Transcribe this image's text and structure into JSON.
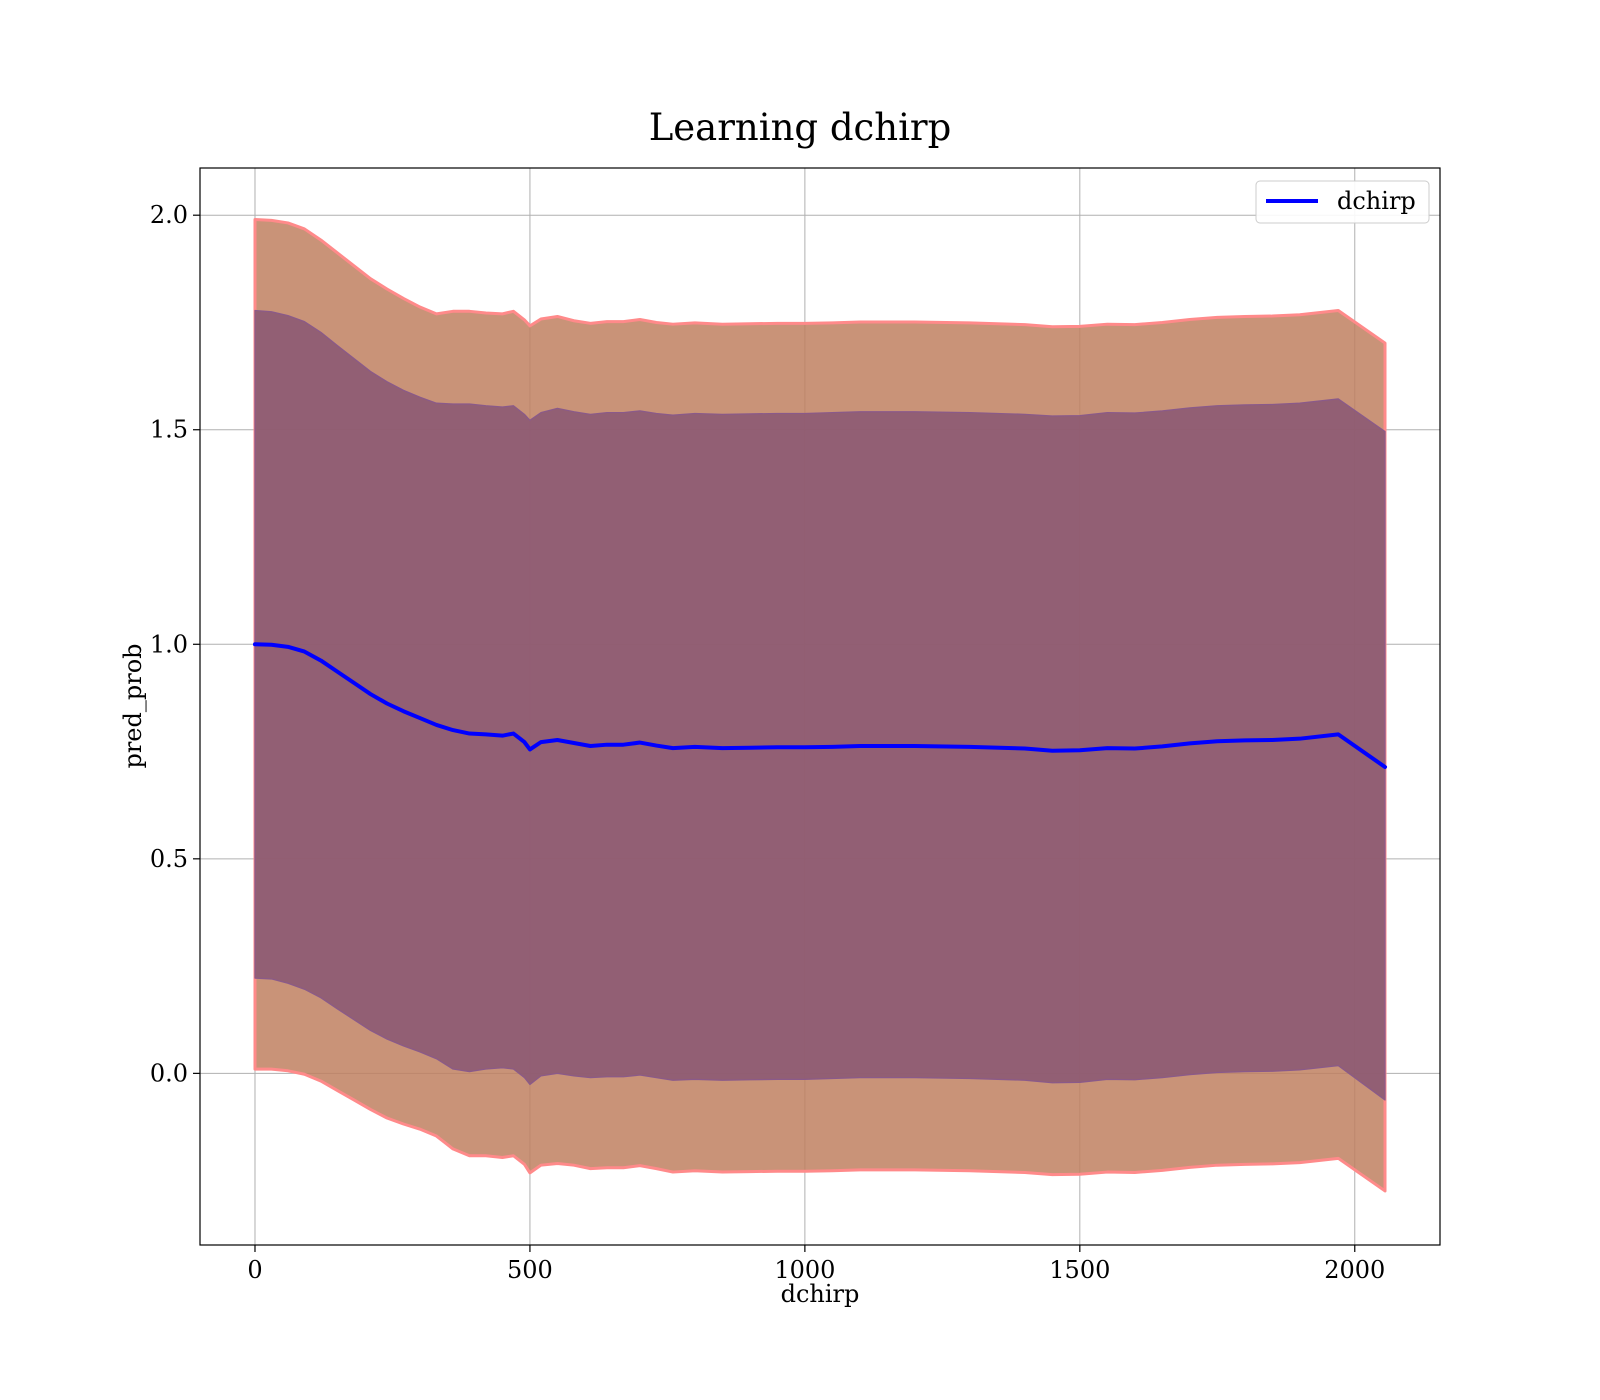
{
  "chart_data": {
    "type": "line",
    "title": "Learning dchirp",
    "xlabel": "dchirp",
    "ylabel": "pred_prob",
    "xlim": [
      -100,
      2155
    ],
    "ylim": [
      -0.4,
      2.11
    ],
    "xticks": [
      0,
      500,
      1000,
      1500,
      2000
    ],
    "xtick_labels": [
      "0",
      "500",
      "1000",
      "1500",
      "2000"
    ],
    "yticks": [
      0.0,
      0.5,
      1.0,
      1.5,
      2.0
    ],
    "ytick_labels": [
      "0.0",
      "0.5",
      "1.0",
      "1.5",
      "2.0"
    ],
    "grid": true,
    "legend_position": "upper-right",
    "series": [
      {
        "name": "dchirp",
        "color": "#0000ff",
        "x": [
          0,
          30,
          60,
          90,
          120,
          150,
          180,
          210,
          240,
          270,
          300,
          330,
          360,
          390,
          420,
          450,
          470,
          490,
          500,
          520,
          550,
          580,
          610,
          640,
          670,
          700,
          730,
          760,
          800,
          850,
          900,
          950,
          1000,
          1050,
          1100,
          1200,
          1300,
          1400,
          1450,
          1500,
          1550,
          1600,
          1650,
          1700,
          1750,
          1800,
          1850,
          1900,
          1970,
          2055
        ],
        "y": [
          1.0,
          0.999,
          0.994,
          0.983,
          0.962,
          0.936,
          0.91,
          0.884,
          0.862,
          0.844,
          0.828,
          0.812,
          0.8,
          0.792,
          0.79,
          0.787,
          0.792,
          0.772,
          0.755,
          0.772,
          0.777,
          0.77,
          0.763,
          0.766,
          0.766,
          0.771,
          0.764,
          0.758,
          0.761,
          0.758,
          0.759,
          0.76,
          0.76,
          0.761,
          0.763,
          0.763,
          0.761,
          0.757,
          0.752,
          0.753,
          0.758,
          0.757,
          0.762,
          0.769,
          0.774,
          0.776,
          0.777,
          0.78,
          0.79,
          0.714
        ]
      }
    ],
    "bands": [
      {
        "color": "#c08060",
        "edge_color": "#ff8a8a",
        "opacity": 0.85,
        "x": [
          0,
          30,
          60,
          90,
          120,
          150,
          180,
          210,
          240,
          270,
          300,
          330,
          360,
          390,
          420,
          450,
          470,
          490,
          500,
          520,
          550,
          580,
          610,
          640,
          670,
          700,
          730,
          760,
          800,
          850,
          900,
          950,
          1000,
          1050,
          1100,
          1200,
          1300,
          1400,
          1450,
          1500,
          1550,
          1600,
          1650,
          1700,
          1750,
          1800,
          1850,
          1900,
          1970,
          2055
        ],
        "upper": [
          1.99,
          1.988,
          1.982,
          1.968,
          1.942,
          1.912,
          1.882,
          1.852,
          1.828,
          1.806,
          1.786,
          1.77,
          1.776,
          1.776,
          1.772,
          1.77,
          1.776,
          1.756,
          1.742,
          1.758,
          1.764,
          1.754,
          1.748,
          1.752,
          1.752,
          1.757,
          1.75,
          1.746,
          1.749,
          1.746,
          1.747,
          1.748,
          1.748,
          1.749,
          1.751,
          1.751,
          1.749,
          1.745,
          1.74,
          1.741,
          1.746,
          1.745,
          1.75,
          1.757,
          1.762,
          1.764,
          1.765,
          1.768,
          1.778,
          1.702
        ],
        "lower": [
          0.01,
          0.01,
          0.006,
          -0.002,
          -0.018,
          -0.04,
          -0.062,
          -0.084,
          -0.104,
          -0.118,
          -0.13,
          -0.146,
          -0.176,
          -0.192,
          -0.192,
          -0.196,
          -0.192,
          -0.212,
          -0.232,
          -0.214,
          -0.21,
          -0.214,
          -0.222,
          -0.22,
          -0.22,
          -0.215,
          -0.222,
          -0.23,
          -0.227,
          -0.23,
          -0.229,
          -0.228,
          -0.228,
          -0.227,
          -0.225,
          -0.225,
          -0.227,
          -0.231,
          -0.236,
          -0.235,
          -0.23,
          -0.231,
          -0.226,
          -0.219,
          -0.214,
          -0.212,
          -0.211,
          -0.208,
          -0.198,
          -0.274
        ]
      },
      {
        "color": "#8c5a73",
        "edge_color": "#8a5a8a",
        "opacity": 0.9,
        "x": [
          0,
          30,
          60,
          90,
          120,
          150,
          180,
          210,
          240,
          270,
          300,
          330,
          360,
          390,
          420,
          450,
          470,
          490,
          500,
          520,
          550,
          580,
          610,
          640,
          670,
          700,
          730,
          760,
          800,
          850,
          900,
          950,
          1000,
          1050,
          1100,
          1200,
          1300,
          1400,
          1450,
          1500,
          1550,
          1600,
          1650,
          1700,
          1750,
          1800,
          1850,
          1900,
          1970,
          2055
        ],
        "upper": [
          1.778,
          1.775,
          1.766,
          1.752,
          1.727,
          1.696,
          1.666,
          1.636,
          1.612,
          1.592,
          1.576,
          1.562,
          1.56,
          1.56,
          1.556,
          1.553,
          1.556,
          1.536,
          1.522,
          1.54,
          1.55,
          1.542,
          1.536,
          1.54,
          1.54,
          1.544,
          1.538,
          1.534,
          1.538,
          1.536,
          1.537,
          1.538,
          1.538,
          1.54,
          1.542,
          1.542,
          1.54,
          1.536,
          1.532,
          1.533,
          1.54,
          1.539,
          1.544,
          1.551,
          1.556,
          1.558,
          1.559,
          1.562,
          1.572,
          1.496
        ],
        "lower": [
          0.222,
          0.22,
          0.21,
          0.196,
          0.176,
          0.15,
          0.125,
          0.1,
          0.08,
          0.064,
          0.05,
          0.034,
          0.01,
          0.004,
          0.01,
          0.013,
          0.01,
          -0.01,
          -0.026,
          -0.006,
          0.0,
          -0.006,
          -0.01,
          -0.008,
          -0.008,
          -0.004,
          -0.01,
          -0.016,
          -0.014,
          -0.016,
          -0.015,
          -0.014,
          -0.014,
          -0.012,
          -0.01,
          -0.01,
          -0.012,
          -0.016,
          -0.022,
          -0.021,
          -0.014,
          -0.015,
          -0.01,
          -0.003,
          0.002,
          0.004,
          0.005,
          0.008,
          0.018,
          -0.062
        ]
      }
    ]
  }
}
